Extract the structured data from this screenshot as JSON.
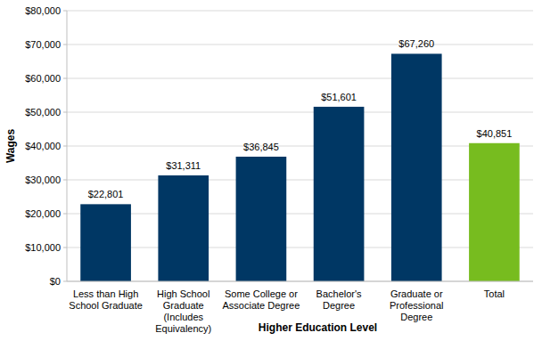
{
  "chart_data": {
    "type": "bar",
    "x_label": "Higher Education Level",
    "y_label": "Wages",
    "categories": [
      "Less than High\nSchool Graduate",
      "High School\nGraduate\n(Includes\nEquivalency)",
      "Some College or\nAssociate Degree",
      "Bachelor's\nDegree",
      "Graduate or\nProfessional\nDegree",
      "Total"
    ],
    "values": [
      22801,
      31311,
      36845,
      51601,
      67260,
      40851
    ],
    "value_labels": [
      "$22,801",
      "$31,311",
      "$36,845",
      "$51,601",
      "$67,260",
      "$40,851"
    ],
    "colors": [
      "#003764",
      "#003764",
      "#003764",
      "#003764",
      "#003764",
      "#77bc1f"
    ],
    "ylim": [
      0,
      80000
    ],
    "yticks": [
      {
        "value": 0,
        "label": "$0"
      },
      {
        "value": 10000,
        "label": "$10,000"
      },
      {
        "value": 20000,
        "label": "$20,000"
      },
      {
        "value": 30000,
        "label": "$30,000"
      },
      {
        "value": 40000,
        "label": "$40,000"
      },
      {
        "value": 50000,
        "label": "$50,000"
      },
      {
        "value": 60000,
        "label": "$60,000"
      },
      {
        "value": 70000,
        "label": "$70,000"
      },
      {
        "value": 80000,
        "label": "$80,000"
      }
    ],
    "grid": true,
    "data_labels": true
  }
}
